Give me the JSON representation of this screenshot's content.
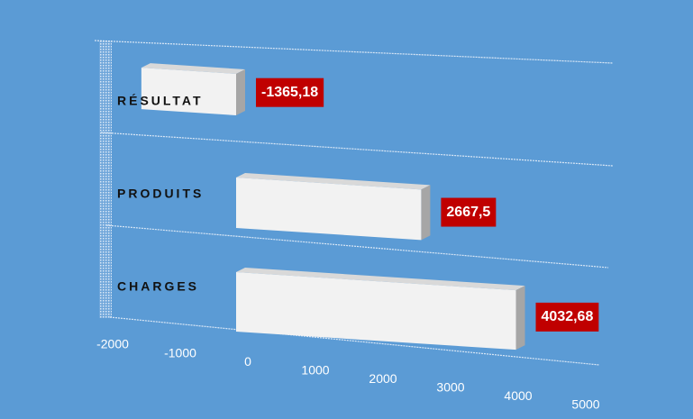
{
  "chart_data": {
    "type": "bar",
    "orientation": "horizontal",
    "categories": [
      "RÉSULTAT",
      "PRODUITS",
      "CHARGES"
    ],
    "values": [
      -1365.18,
      2667.5,
      4032.68
    ],
    "value_labels": [
      "-1365,18",
      "2667,5",
      "4032,68"
    ],
    "color": "#f2f2f2",
    "label_color": "#c00000",
    "xlim": [
      -2000,
      5000
    ],
    "xticks": [
      -2000,
      -1000,
      0,
      1000,
      2000,
      3000,
      4000,
      5000
    ]
  }
}
